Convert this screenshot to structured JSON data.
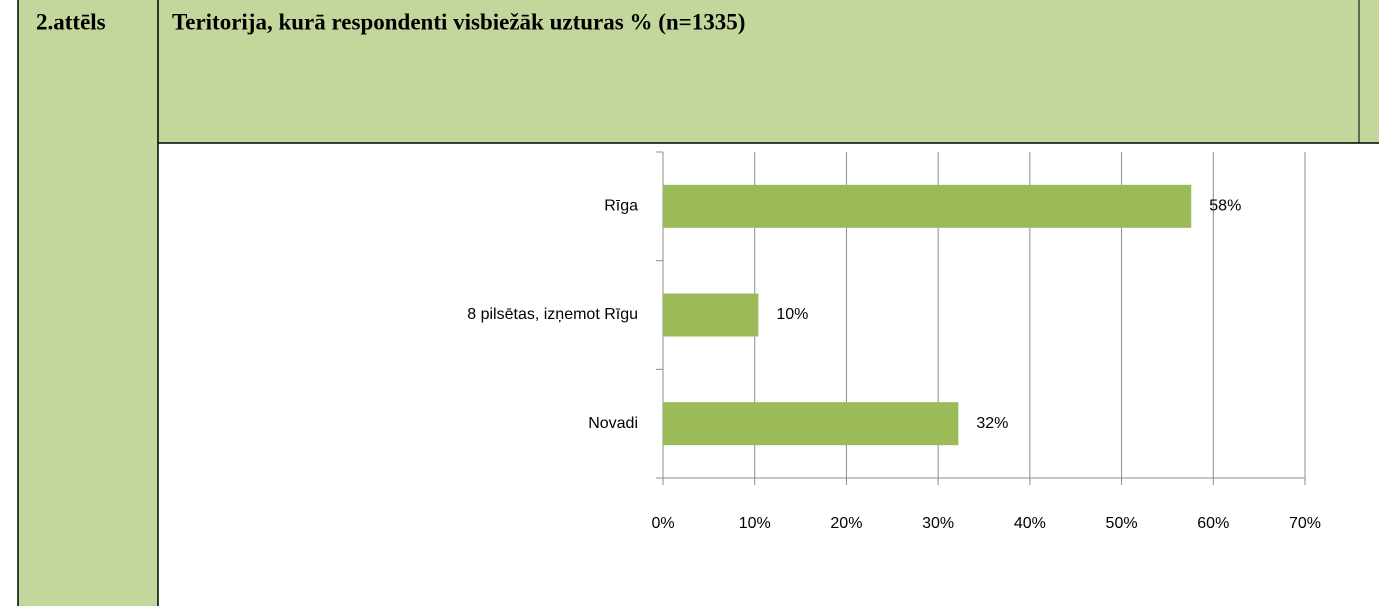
{
  "figure_label": "2.attēls",
  "chart_data": {
    "type": "bar",
    "orientation": "horizontal",
    "title": "Teritorija, kurā respondenti visbiežāk uzturas % (n=1335)",
    "categories": [
      "Rīga",
      "8 pilsētas, izņemot Rīgu",
      "Novadi"
    ],
    "values": [
      57.6,
      10.4,
      32.2
    ],
    "value_labels": [
      "58%",
      "10%",
      "32%"
    ],
    "color": "#9bbb59",
    "xlim": [
      0,
      70
    ],
    "xticks": [
      {
        "value": 0,
        "label": "0%"
      },
      {
        "value": 10,
        "label": "10%"
      },
      {
        "value": 20,
        "label": "20%"
      },
      {
        "value": 30,
        "label": "30%"
      },
      {
        "value": 40,
        "label": "40%"
      },
      {
        "value": 50,
        "label": "50%"
      },
      {
        "value": 60,
        "label": "60%"
      },
      {
        "value": 70,
        "label": "70%"
      }
    ],
    "grid": true
  }
}
